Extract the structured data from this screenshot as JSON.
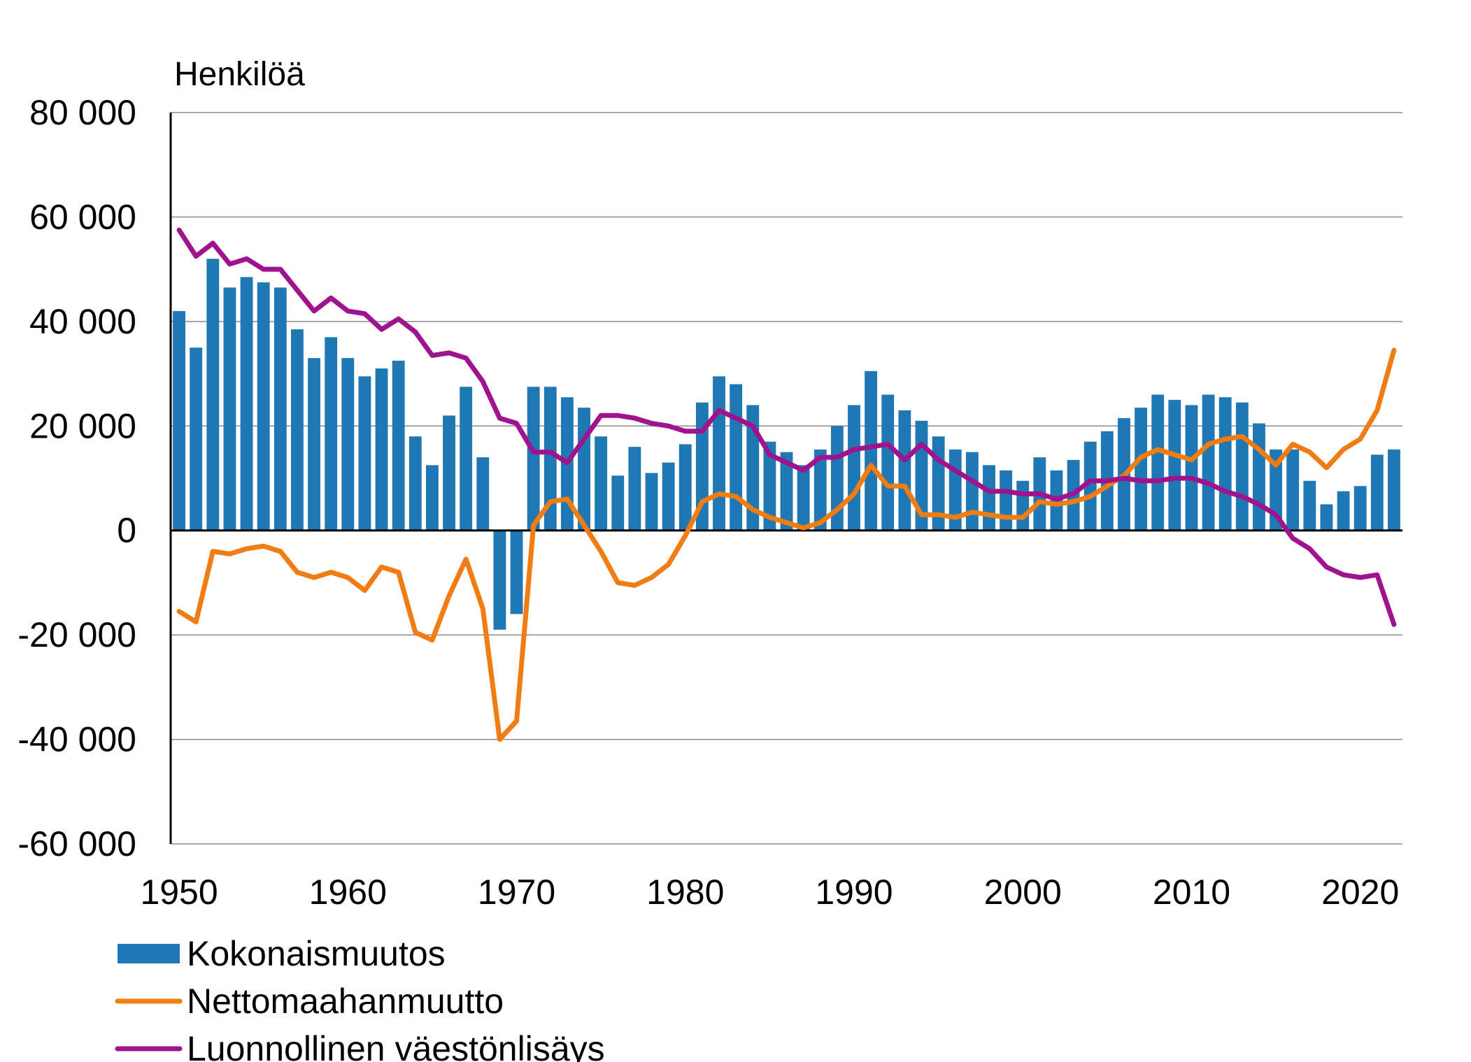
{
  "chart_data": {
    "type": "bar",
    "ylabel": "Henkilöä",
    "ylim": [
      -60000,
      80000
    ],
    "yticks": [
      80000,
      60000,
      40000,
      20000,
      0,
      -20000,
      -40000,
      -60000
    ],
    "ytick_labels": [
      "80 000",
      "60 000",
      "40 000",
      "20 000",
      "0",
      "-20 000",
      "-40 000",
      "-60 000"
    ],
    "xticks": [
      1950,
      1960,
      1970,
      1980,
      1990,
      2000,
      2010,
      2020
    ],
    "xtick_labels": [
      "1950",
      "1960",
      "1970",
      "1980",
      "1990",
      "2000",
      "2010",
      "2020"
    ],
    "grid": true,
    "legend_position": "bottom-left",
    "x": [
      1950,
      1951,
      1952,
      1953,
      1954,
      1955,
      1956,
      1957,
      1958,
      1959,
      1960,
      1961,
      1962,
      1963,
      1964,
      1965,
      1966,
      1967,
      1968,
      1969,
      1970,
      1971,
      1972,
      1973,
      1974,
      1975,
      1976,
      1977,
      1978,
      1979,
      1980,
      1981,
      1982,
      1983,
      1984,
      1985,
      1986,
      1987,
      1988,
      1989,
      1990,
      1991,
      1992,
      1993,
      1994,
      1995,
      1996,
      1997,
      1998,
      1999,
      2000,
      2001,
      2002,
      2003,
      2004,
      2005,
      2006,
      2007,
      2008,
      2009,
      2010,
      2011,
      2012,
      2013,
      2014,
      2015,
      2016,
      2017,
      2018,
      2019,
      2020,
      2021,
      2022
    ],
    "series": [
      {
        "name": "Kokonaismuutos",
        "kind": "bar",
        "color": "#1f77b4",
        "values": [
          42000,
          35000,
          52000,
          46500,
          48500,
          47500,
          46500,
          38500,
          33000,
          37000,
          33000,
          29500,
          31000,
          32500,
          18000,
          12500,
          22000,
          27500,
          14000,
          -19000,
          -16000,
          27500,
          27500,
          25500,
          23500,
          18000,
          10500,
          16000,
          11000,
          13000,
          16500,
          24500,
          29500,
          28000,
          24000,
          17000,
          15000,
          12500,
          15500,
          20000,
          24000,
          30500,
          26000,
          23000,
          21000,
          18000,
          15500,
          15000,
          12500,
          11500,
          9500,
          14000,
          11500,
          13500,
          17000,
          19000,
          21500,
          23500,
          26000,
          25000,
          24000,
          26000,
          25500,
          24500,
          20500,
          15500,
          15500,
          9500,
          5000,
          7500,
          8500,
          14500,
          15500
        ]
      },
      {
        "name": "Nettomaahanmuutto",
        "kind": "line",
        "color": "#f07c12",
        "values": [
          -15500,
          -17500,
          -4000,
          -4500,
          -3500,
          -3000,
          -4000,
          -8000,
          -9000,
          -8000,
          -9000,
          -11500,
          -7000,
          -8000,
          -19500,
          -21000,
          -12500,
          -5500,
          -15000,
          -40000,
          -36500,
          1000,
          5500,
          6000,
          1000,
          -4000,
          -10000,
          -10500,
          -9000,
          -6500,
          -1000,
          5500,
          7000,
          6500,
          4000,
          2500,
          1500,
          500,
          1500,
          4000,
          7000,
          12500,
          8500,
          8500,
          3000,
          3000,
          2500,
          3500,
          3000,
          2500,
          2500,
          5500,
          5000,
          5500,
          6500,
          8500,
          10500,
          14000,
          15500,
          14500,
          13500,
          16500,
          17500,
          18000,
          15500,
          12500,
          16500,
          15000,
          12000,
          15500,
          17500,
          23000,
          34500
        ]
      },
      {
        "name": "Luonnollinen väestönlisäys",
        "kind": "line",
        "color": "#a0138e",
        "values": [
          57500,
          52500,
          55000,
          51000,
          52000,
          50000,
          50000,
          46000,
          42000,
          44500,
          42000,
          41500,
          38500,
          40500,
          38000,
          33500,
          34000,
          33000,
          28500,
          21500,
          20500,
          15000,
          15000,
          13000,
          17500,
          22000,
          22000,
          21500,
          20500,
          20000,
          19000,
          19000,
          23000,
          21500,
          20000,
          14500,
          13000,
          11500,
          14000,
          14000,
          15500,
          16000,
          16500,
          13500,
          16500,
          13500,
          11500,
          9500,
          7500,
          7500,
          7000,
          7000,
          6000,
          7000,
          9500,
          9500,
          10000,
          9500,
          9500,
          10000,
          10000,
          9000,
          7500,
          6500,
          5000,
          3000,
          -1500,
          -3500,
          -7000,
          -8500,
          -9000,
          -8500,
          -18000
        ]
      }
    ]
  }
}
